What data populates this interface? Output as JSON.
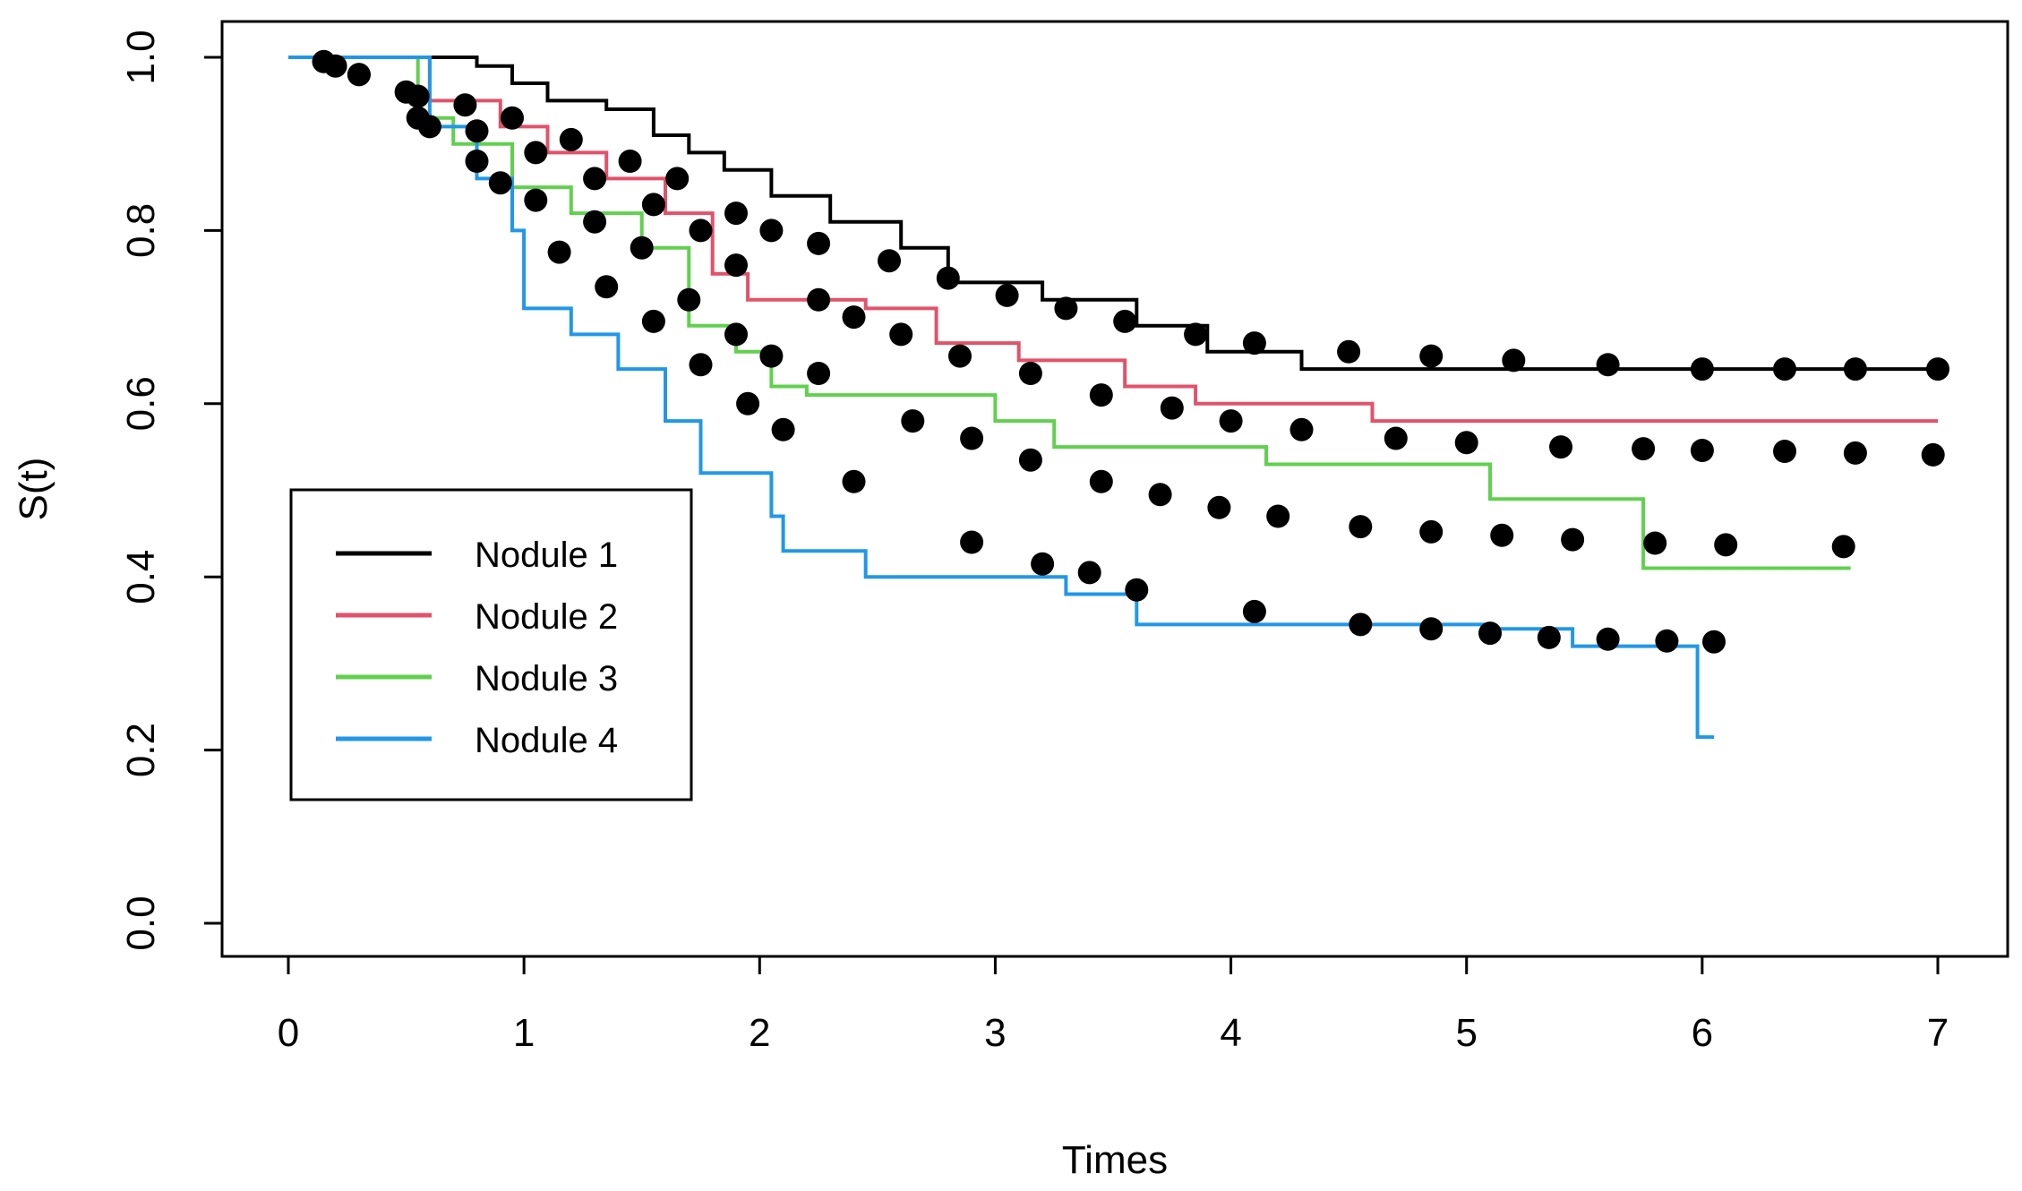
{
  "chart_data": {
    "type": "line",
    "title": "",
    "xlabel": "Times",
    "ylabel": "S(t)",
    "xlim": [
      0,
      7
    ],
    "ylim": [
      0,
      1
    ],
    "x_ticks": [
      "0",
      "1",
      "2",
      "3",
      "4",
      "5",
      "6",
      "7"
    ],
    "y_ticks": [
      "0.0",
      "0.2",
      "0.4",
      "0.6",
      "0.8",
      "1.0"
    ],
    "grid": false,
    "legend_position": "left",
    "series": [
      {
        "name": "Nodule 1",
        "color": "#000000",
        "steps": [
          [
            0,
            1.0
          ],
          [
            0.8,
            0.99
          ],
          [
            0.95,
            0.97
          ],
          [
            1.1,
            0.95
          ],
          [
            1.35,
            0.94
          ],
          [
            1.55,
            0.91
          ],
          [
            1.7,
            0.89
          ],
          [
            1.85,
            0.87
          ],
          [
            2.05,
            0.84
          ],
          [
            2.3,
            0.81
          ],
          [
            2.6,
            0.78
          ],
          [
            2.8,
            0.74
          ],
          [
            3.2,
            0.72
          ],
          [
            3.6,
            0.69
          ],
          [
            3.9,
            0.66
          ],
          [
            4.3,
            0.64
          ],
          [
            6.98,
            0.64
          ]
        ]
      },
      {
        "name": "Nodule 2",
        "color": "#DF536B",
        "steps": [
          [
            0,
            1.0
          ],
          [
            0.6,
            0.95
          ],
          [
            0.9,
            0.92
          ],
          [
            1.1,
            0.89
          ],
          [
            1.35,
            0.86
          ],
          [
            1.6,
            0.82
          ],
          [
            1.8,
            0.75
          ],
          [
            1.95,
            0.72
          ],
          [
            2.45,
            0.71
          ],
          [
            2.75,
            0.67
          ],
          [
            3.1,
            0.65
          ],
          [
            3.55,
            0.62
          ],
          [
            3.85,
            0.6
          ],
          [
            4.6,
            0.58
          ],
          [
            7.0,
            0.58
          ]
        ]
      },
      {
        "name": "Nodule 3",
        "color": "#61D04F",
        "steps": [
          [
            0,
            1.0
          ],
          [
            0.55,
            0.93
          ],
          [
            0.7,
            0.9
          ],
          [
            0.95,
            0.85
          ],
          [
            1.2,
            0.82
          ],
          [
            1.5,
            0.78
          ],
          [
            1.7,
            0.69
          ],
          [
            1.9,
            0.66
          ],
          [
            2.05,
            0.62
          ],
          [
            2.2,
            0.61
          ],
          [
            3.0,
            0.58
          ],
          [
            3.25,
            0.55
          ],
          [
            4.15,
            0.53
          ],
          [
            5.1,
            0.49
          ],
          [
            5.75,
            0.41
          ],
          [
            6.63,
            0.41
          ]
        ]
      },
      {
        "name": "Nodule 4",
        "color": "#2297E6",
        "steps": [
          [
            0,
            1.0
          ],
          [
            0.6,
            0.92
          ],
          [
            0.8,
            0.86
          ],
          [
            0.95,
            0.8
          ],
          [
            1.0,
            0.71
          ],
          [
            1.2,
            0.68
          ],
          [
            1.4,
            0.64
          ],
          [
            1.6,
            0.58
          ],
          [
            1.75,
            0.52
          ],
          [
            2.05,
            0.47
          ],
          [
            2.1,
            0.43
          ],
          [
            2.45,
            0.4
          ],
          [
            3.3,
            0.38
          ],
          [
            3.6,
            0.345
          ],
          [
            5.1,
            0.34
          ],
          [
            5.45,
            0.32
          ],
          [
            5.98,
            0.32
          ],
          [
            5.98,
            0.215
          ],
          [
            6.05,
            0.215
          ]
        ]
      }
    ],
    "points_color": "#000000",
    "point_bands": [
      {
        "name": "band-1",
        "points": [
          [
            0.15,
            0.995
          ],
          [
            0.3,
            0.98
          ],
          [
            0.55,
            0.955
          ],
          [
            0.75,
            0.945
          ],
          [
            0.95,
            0.93
          ],
          [
            1.2,
            0.905
          ],
          [
            1.45,
            0.88
          ],
          [
            1.65,
            0.86
          ],
          [
            1.9,
            0.82
          ],
          [
            2.05,
            0.8
          ],
          [
            2.25,
            0.785
          ],
          [
            2.55,
            0.765
          ],
          [
            2.8,
            0.745
          ],
          [
            3.05,
            0.725
          ],
          [
            3.3,
            0.71
          ],
          [
            3.55,
            0.695
          ],
          [
            3.85,
            0.68
          ],
          [
            4.1,
            0.67
          ],
          [
            4.5,
            0.66
          ],
          [
            4.85,
            0.655
          ],
          [
            5.2,
            0.65
          ],
          [
            5.6,
            0.645
          ],
          [
            6.0,
            0.64
          ],
          [
            6.35,
            0.64
          ],
          [
            6.65,
            0.64
          ],
          [
            7.0,
            0.64
          ]
        ]
      },
      {
        "name": "band-2",
        "points": [
          [
            0.2,
            0.99
          ],
          [
            0.5,
            0.96
          ],
          [
            0.8,
            0.915
          ],
          [
            1.05,
            0.89
          ],
          [
            1.3,
            0.86
          ],
          [
            1.55,
            0.83
          ],
          [
            1.75,
            0.8
          ],
          [
            1.9,
            0.76
          ],
          [
            2.25,
            0.72
          ],
          [
            2.4,
            0.7
          ],
          [
            2.6,
            0.68
          ],
          [
            2.85,
            0.655
          ],
          [
            3.15,
            0.635
          ],
          [
            3.45,
            0.61
          ],
          [
            3.75,
            0.595
          ],
          [
            4.0,
            0.58
          ],
          [
            4.3,
            0.57
          ],
          [
            4.7,
            0.56
          ],
          [
            5.0,
            0.555
          ],
          [
            5.4,
            0.55
          ],
          [
            5.75,
            0.548
          ],
          [
            6.0,
            0.546
          ],
          [
            6.35,
            0.545
          ],
          [
            6.65,
            0.543
          ],
          [
            6.98,
            0.541
          ]
        ]
      },
      {
        "name": "band-3",
        "points": [
          [
            0.3,
            0.98
          ],
          [
            0.55,
            0.93
          ],
          [
            0.8,
            0.88
          ],
          [
            1.05,
            0.835
          ],
          [
            1.3,
            0.81
          ],
          [
            1.5,
            0.78
          ],
          [
            1.7,
            0.72
          ],
          [
            1.9,
            0.68
          ],
          [
            2.05,
            0.655
          ],
          [
            2.25,
            0.635
          ],
          [
            2.65,
            0.58
          ],
          [
            2.9,
            0.56
          ],
          [
            3.15,
            0.535
          ],
          [
            3.45,
            0.51
          ],
          [
            3.7,
            0.495
          ],
          [
            3.95,
            0.48
          ],
          [
            4.2,
            0.47
          ],
          [
            4.55,
            0.458
          ],
          [
            4.85,
            0.452
          ],
          [
            5.15,
            0.448
          ],
          [
            5.45,
            0.443
          ],
          [
            5.8,
            0.439
          ],
          [
            6.1,
            0.437
          ],
          [
            6.6,
            0.435
          ]
        ]
      },
      {
        "name": "band-4",
        "points": [
          [
            0.6,
            0.92
          ],
          [
            0.9,
            0.855
          ],
          [
            1.15,
            0.775
          ],
          [
            1.35,
            0.735
          ],
          [
            1.55,
            0.695
          ],
          [
            1.75,
            0.645
          ],
          [
            1.95,
            0.6
          ],
          [
            2.1,
            0.57
          ],
          [
            2.4,
            0.51
          ],
          [
            2.9,
            0.44
          ],
          [
            3.2,
            0.415
          ],
          [
            3.4,
            0.405
          ],
          [
            3.6,
            0.385
          ],
          [
            4.1,
            0.36
          ],
          [
            4.55,
            0.345
          ],
          [
            4.85,
            0.34
          ],
          [
            5.1,
            0.335
          ],
          [
            5.35,
            0.33
          ],
          [
            5.6,
            0.328
          ],
          [
            5.85,
            0.326
          ],
          [
            6.05,
            0.325
          ]
        ]
      }
    ]
  }
}
